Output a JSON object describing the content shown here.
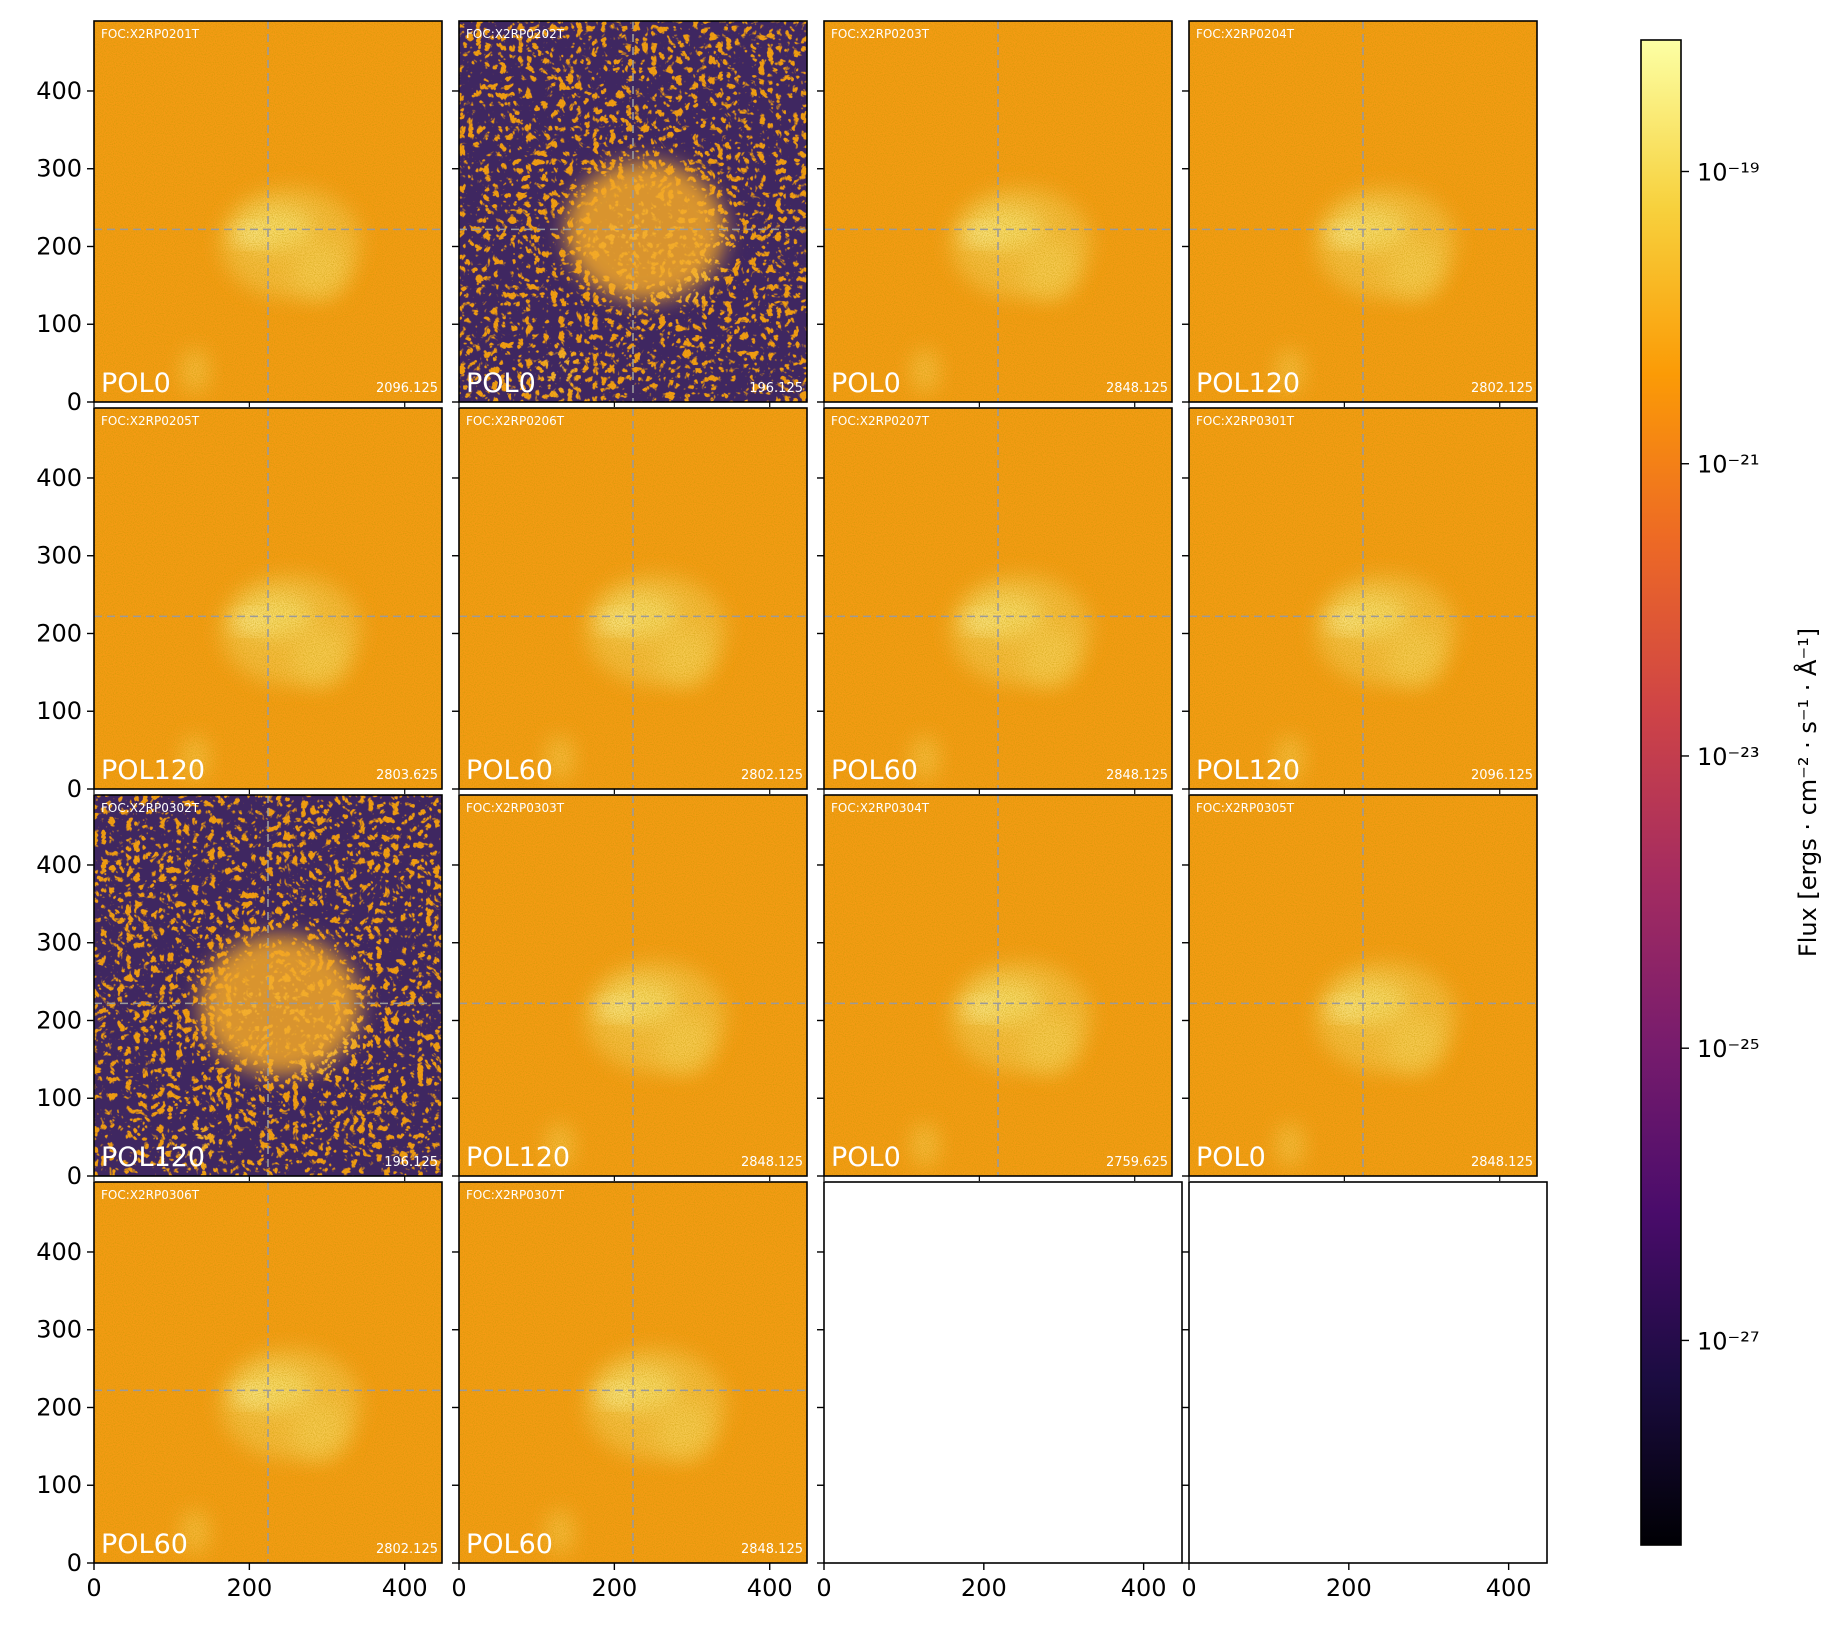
{
  "chart_data": {
    "type": "heatmap",
    "layout": {
      "rows": 4,
      "cols": 4
    },
    "xlim": [
      0,
      448
    ],
    "ylim": [
      0,
      490
    ],
    "xticks": [
      0,
      200,
      400
    ],
    "yticks": [
      0,
      100,
      200,
      300,
      400
    ],
    "crosshair": {
      "x": 224,
      "y": 222
    },
    "panels": [
      {
        "obs_id": "FOC:X2RP0201T",
        "filter": "POL0",
        "exptime": "2096.125",
        "noisy": false
      },
      {
        "obs_id": "FOC:X2RP0202T",
        "filter": "POL0",
        "exptime": "196.125",
        "noisy": true
      },
      {
        "obs_id": "FOC:X2RP0203T",
        "filter": "POL0",
        "exptime": "2848.125",
        "noisy": false
      },
      {
        "obs_id": "FOC:X2RP0204T",
        "filter": "POL120",
        "exptime": "2802.125",
        "noisy": false
      },
      {
        "obs_id": "FOC:X2RP0205T",
        "filter": "POL120",
        "exptime": "2803.625",
        "noisy": false
      },
      {
        "obs_id": "FOC:X2RP0206T",
        "filter": "POL60",
        "exptime": "2802.125",
        "noisy": false
      },
      {
        "obs_id": "FOC:X2RP0207T",
        "filter": "POL60",
        "exptime": "2848.125",
        "noisy": false
      },
      {
        "obs_id": "FOC:X2RP0301T",
        "filter": "POL120",
        "exptime": "2096.125",
        "noisy": false
      },
      {
        "obs_id": "FOC:X2RP0302T",
        "filter": "POL120",
        "exptime": "196.125",
        "noisy": true
      },
      {
        "obs_id": "FOC:X2RP0303T",
        "filter": "POL120",
        "exptime": "2848.125",
        "noisy": false
      },
      {
        "obs_id": "FOC:X2RP0304T",
        "filter": "POL0",
        "exptime": "2759.625",
        "noisy": false
      },
      {
        "obs_id": "FOC:X2RP0305T",
        "filter": "POL0",
        "exptime": "2848.125",
        "noisy": false
      },
      {
        "obs_id": "FOC:X2RP0306T",
        "filter": "POL60",
        "exptime": "2802.125",
        "noisy": false
      },
      {
        "obs_id": "FOC:X2RP0307T",
        "filter": "POL60",
        "exptime": "2848.125",
        "noisy": false
      }
    ],
    "colorbar": {
      "label": "Flux [ergs · cm⁻² · s⁻¹ · Å⁻¹]",
      "scale": "log",
      "ticks": [
        {
          "exp": -19,
          "label": "10⁻¹⁹"
        },
        {
          "exp": -21,
          "label": "10⁻²¹"
        },
        {
          "exp": -23,
          "label": "10⁻²³"
        },
        {
          "exp": -25,
          "label": "10⁻²⁵"
        },
        {
          "exp": -27,
          "label": "10⁻²⁷"
        }
      ],
      "range": [
        -28.4,
        -18.1
      ],
      "colormap": "inferno",
      "stops": [
        "#000004",
        "#1b0c41",
        "#4a0c6b",
        "#781c6d",
        "#a52c60",
        "#cf4446",
        "#ed6925",
        "#fb9b06",
        "#f7d13d",
        "#fcffa4"
      ]
    }
  }
}
